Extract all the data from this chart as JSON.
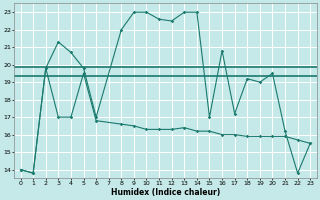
{
  "xlabel": "Humidex (Indice chaleur)",
  "background_color": "#c5e8e8",
  "grid_color": "#ffffff",
  "line_color": "#1a7a6e",
  "xlim": [
    -0.5,
    23.5
  ],
  "ylim": [
    13.5,
    23.5
  ],
  "yticks": [
    14,
    15,
    16,
    17,
    18,
    19,
    20,
    21,
    22,
    23
  ],
  "xticks": [
    0,
    1,
    2,
    3,
    4,
    5,
    6,
    7,
    8,
    9,
    10,
    11,
    12,
    13,
    14,
    15,
    16,
    17,
    18,
    19,
    20,
    21,
    22,
    23
  ],
  "line1_x": [
    0,
    1,
    2,
    3,
    4,
    5,
    6,
    8,
    9,
    10,
    11,
    12,
    13,
    14,
    15,
    16,
    17,
    18,
    19,
    20,
    21,
    22,
    23
  ],
  "line1_y": [
    14,
    13.8,
    19.8,
    21.3,
    20.7,
    19.8,
    17.0,
    22.0,
    23.0,
    23.0,
    22.6,
    22.5,
    23.0,
    23.0,
    17.0,
    20.8,
    17.2,
    19.2,
    19.0,
    19.5,
    16.2,
    13.8,
    15.5
  ],
  "line2_x": [
    0,
    1,
    2,
    3,
    4,
    5,
    6,
    8,
    9,
    10,
    11,
    12,
    13,
    14,
    15,
    16,
    17,
    18,
    19,
    20,
    21,
    22,
    23
  ],
  "line2_y": [
    14,
    13.8,
    19.8,
    17.0,
    17.0,
    19.5,
    16.8,
    16.6,
    16.5,
    16.3,
    16.3,
    16.3,
    16.4,
    16.2,
    16.2,
    16.0,
    16.0,
    15.9,
    15.9,
    15.9,
    15.9,
    15.7,
    15.5
  ],
  "hline1_y": 19.85,
  "hline2_y": 19.35
}
